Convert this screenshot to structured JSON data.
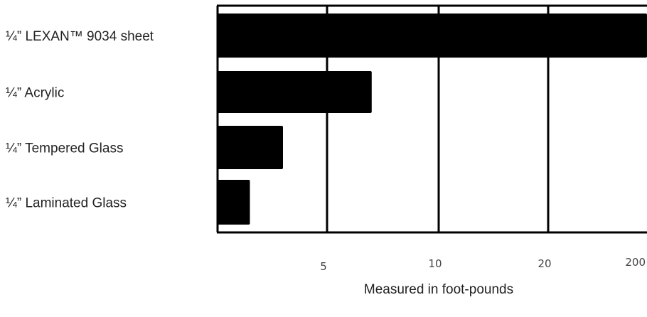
{
  "chart_data": {
    "type": "bar",
    "orientation": "horizontal",
    "categories": [
      "¼” LEXAN™ 9034 sheet",
      "¼” Acrylic",
      "¼” Tempered Glass",
      "¼” Laminated Glass"
    ],
    "values": [
      200,
      7,
      3,
      1.5
    ],
    "xticks": [
      5,
      10,
      20,
      200
    ],
    "xlabel": "Measured in foot-pounds",
    "title": "",
    "grid": true,
    "colors": {
      "bar": "#000000",
      "grid": "#000000",
      "background": "#ffffff"
    }
  }
}
